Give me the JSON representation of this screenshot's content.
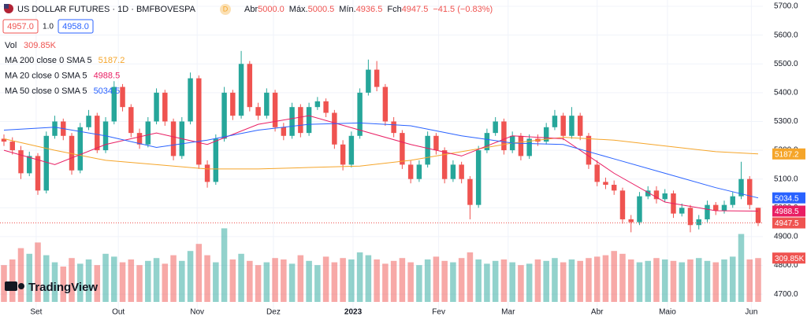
{
  "header": {
    "title": "US DOLLAR FUTURES · 1D · BMFBOVESPA",
    "badge": "D",
    "ohlc": [
      {
        "label": "Abr",
        "value": "5000.0"
      },
      {
        "label": "Máx.",
        "value": "5000.5"
      },
      {
        "label": "Mín.",
        "value": "4936.5"
      },
      {
        "label": "Fch",
        "value": "4947.5"
      }
    ],
    "change": "−41.5 (−0.83%)",
    "bid": "4957.0",
    "spread": "1.0",
    "ask": "4958.0",
    "volume_label": "Vol",
    "volume_value": "309.85K"
  },
  "brand": "TradingView",
  "chart_data": {
    "type": "candlestick",
    "up_color": "#26a69a",
    "down_color": "#ef5350",
    "open": [
      5240,
      5230,
      5200,
      5120,
      5180,
      5060,
      5250,
      5300,
      5250,
      5130,
      5280,
      5320,
      5200,
      5300,
      5420,
      5350,
      5260,
      5220,
      5300,
      5400,
      5300,
      5180,
      5300,
      5450,
      5150,
      5090,
      5240,
      5400,
      5320,
      5500,
      5350,
      5320,
      5400,
      5280,
      5250,
      5350,
      5260,
      5350,
      5370,
      5330,
      5220,
      5150,
      5250,
      5400,
      5480,
      5420,
      5300,
      5260,
      5150,
      5100,
      5150,
      5250,
      5200,
      5100,
      5150,
      5100,
      5010,
      5200,
      5260,
      5300,
      5200,
      5250,
      5180,
      5240,
      5230,
      5280,
      5320,
      5250,
      5320,
      5250,
      5150,
      5090,
      5080,
      5060,
      4960,
      4950,
      5040,
      5060,
      5030,
      5050,
      4980,
      5000,
      4940,
      4960,
      5010,
      4990,
      5010,
      5040,
      5100,
      5000
    ],
    "high": [
      5255,
      5245,
      5215,
      5195,
      5190,
      5265,
      5320,
      5310,
      5260,
      5295,
      5340,
      5330,
      5315,
      5440,
      5430,
      5360,
      5275,
      5315,
      5415,
      5410,
      5310,
      5315,
      5470,
      5460,
      5165,
      5255,
      5420,
      5410,
      5545,
      5510,
      5365,
      5415,
      5410,
      5295,
      5365,
      5360,
      5365,
      5385,
      5380,
      5340,
      5235,
      5265,
      5415,
      5515,
      5510,
      5430,
      5315,
      5270,
      5165,
      5165,
      5265,
      5260,
      5210,
      5165,
      5160,
      5110,
      5215,
      5275,
      5315,
      5310,
      5265,
      5260,
      5255,
      5255,
      5295,
      5340,
      5330,
      5350,
      5330,
      5260,
      5165,
      5105,
      5095,
      5070,
      4975,
      5055,
      5075,
      5075,
      5065,
      5060,
      5015,
      5010,
      4975,
      5025,
      5020,
      5025,
      5055,
      5160,
      5110,
      5000.5
    ],
    "low": [
      5215,
      5185,
      5100,
      5110,
      5045,
      5050,
      5240,
      5235,
      5115,
      5120,
      5270,
      5190,
      5190,
      5290,
      5335,
      5245,
      5205,
      5210,
      5290,
      5285,
      5165,
      5170,
      5290,
      5135,
      5070,
      5080,
      5230,
      5305,
      5310,
      5335,
      5305,
      5310,
      5265,
      5235,
      5240,
      5245,
      5250,
      5340,
      5315,
      5205,
      5130,
      5140,
      5240,
      5390,
      5405,
      5285,
      5245,
      5135,
      5085,
      5090,
      5140,
      5185,
      5085,
      5090,
      5085,
      4960,
      5000,
      5190,
      5250,
      5185,
      5190,
      5165,
      5170,
      5215,
      5220,
      5270,
      5235,
      5240,
      5235,
      5135,
      5075,
      5065,
      5045,
      4945,
      4915,
      4940,
      5030,
      5015,
      5020,
      4965,
      4970,
      4915,
      4925,
      4950,
      4975,
      4980,
      5000,
      5030,
      4995,
      4936.5
    ],
    "close": [
      5230,
      5200,
      5120,
      5180,
      5060,
      5250,
      5300,
      5250,
      5130,
      5280,
      5320,
      5200,
      5300,
      5420,
      5350,
      5260,
      5220,
      5300,
      5400,
      5300,
      5180,
      5300,
      5450,
      5150,
      5090,
      5240,
      5400,
      5320,
      5500,
      5350,
      5320,
      5400,
      5280,
      5250,
      5350,
      5260,
      5350,
      5370,
      5330,
      5220,
      5150,
      5250,
      5400,
      5480,
      5420,
      5300,
      5260,
      5150,
      5100,
      5150,
      5250,
      5200,
      5100,
      5150,
      5100,
      5010,
      5200,
      5260,
      5300,
      5200,
      5250,
      5180,
      5240,
      5230,
      5280,
      5320,
      5250,
      5320,
      5250,
      5150,
      5090,
      5080,
      5060,
      4960,
      4950,
      5040,
      5060,
      5030,
      5050,
      4980,
      5000,
      4940,
      4960,
      5010,
      4990,
      5010,
      5040,
      5100,
      5010,
      4947.5
    ],
    "volume": [
      260,
      300,
      380,
      340,
      420,
      330,
      280,
      250,
      310,
      270,
      300,
      260,
      340,
      320,
      280,
      300,
      260,
      290,
      310,
      270,
      330,
      290,
      360,
      410,
      330,
      280,
      520,
      300,
      340,
      290,
      260,
      280,
      310,
      300,
      270,
      330,
      290,
      260,
      320,
      280,
      310,
      300,
      350,
      330,
      300,
      270,
      290,
      310,
      280,
      260,
      300,
      320,
      290,
      280,
      310,
      350,
      300,
      270,
      290,
      300,
      280,
      260,
      270,
      300,
      290,
      310,
      280,
      300,
      290,
      310,
      320,
      330,
      360,
      340,
      300,
      280,
      290,
      310,
      300,
      290,
      280,
      300,
      310,
      290,
      280,
      300,
      320,
      480,
      300,
      309.85
    ],
    "volume_ylim": [
      0,
      700
    ],
    "ylim": [
      4643,
      5722
    ],
    "yticks": [
      {
        "value": 5700,
        "label": "5700.0"
      },
      {
        "value": 5600,
        "label": "5600.0"
      },
      {
        "value": 5500,
        "label": "5500.0"
      },
      {
        "value": 5400,
        "label": "5400.0"
      },
      {
        "value": 5300,
        "label": "5300.0"
      },
      {
        "value": 5200,
        "label": "5200.0"
      },
      {
        "value": 5100,
        "label": "5100.0"
      },
      {
        "value": 5000,
        "label": "5000.0"
      },
      {
        "value": 4900,
        "label": "4900.0"
      },
      {
        "value": 4800,
        "label": "4800.0"
      },
      {
        "value": 4700,
        "label": "4700.0"
      }
    ],
    "xticks": [
      {
        "value": 3.8,
        "label": "Set"
      },
      {
        "value": 13.5,
        "label": "Out"
      },
      {
        "value": 22.8,
        "label": "Nov"
      },
      {
        "value": 31.8,
        "label": "Dez"
      },
      {
        "value": 41.2,
        "label": "2023"
      },
      {
        "value": 51.3,
        "label": "Fev"
      },
      {
        "value": 59.5,
        "label": "Mar"
      },
      {
        "value": 70,
        "label": "Abr"
      },
      {
        "value": 78.3,
        "label": "Maio"
      },
      {
        "value": 88.2,
        "label": "Jun"
      }
    ],
    "series": [
      {
        "name": "MA 200 close 0 SMA 5",
        "color": "#f5a52a",
        "x": [
          0,
          6,
          12,
          18,
          24,
          30,
          36,
          42,
          48,
          54,
          60,
          66,
          72,
          78,
          84,
          89
        ],
        "values": [
          5240,
          5200,
          5165,
          5150,
          5135,
          5135,
          5140,
          5145,
          5165,
          5195,
          5225,
          5245,
          5235,
          5215,
          5195,
          5187.2
        ]
      },
      {
        "name": "MA 20 close 0 SMA 5",
        "color": "#e91e63",
        "x": [
          0,
          6,
          12,
          18,
          24,
          30,
          36,
          42,
          48,
          54,
          60,
          66,
          72,
          78,
          84,
          89
        ],
        "values": [
          5200,
          5150,
          5220,
          5260,
          5220,
          5290,
          5320,
          5270,
          5220,
          5180,
          5250,
          5240,
          5120,
          5020,
          4990,
          4988.5
        ]
      },
      {
        "name": "MA 50 close 0 SMA 5",
        "color": "#2962ff",
        "x": [
          0,
          6,
          12,
          18,
          24,
          30,
          36,
          42,
          48,
          54,
          60,
          66,
          72,
          78,
          84,
          89
        ],
        "values": [
          5270,
          5280,
          5250,
          5210,
          5235,
          5270,
          5290,
          5295,
          5285,
          5250,
          5225,
          5220,
          5170,
          5120,
          5070,
          5034.5
        ]
      }
    ]
  }
}
